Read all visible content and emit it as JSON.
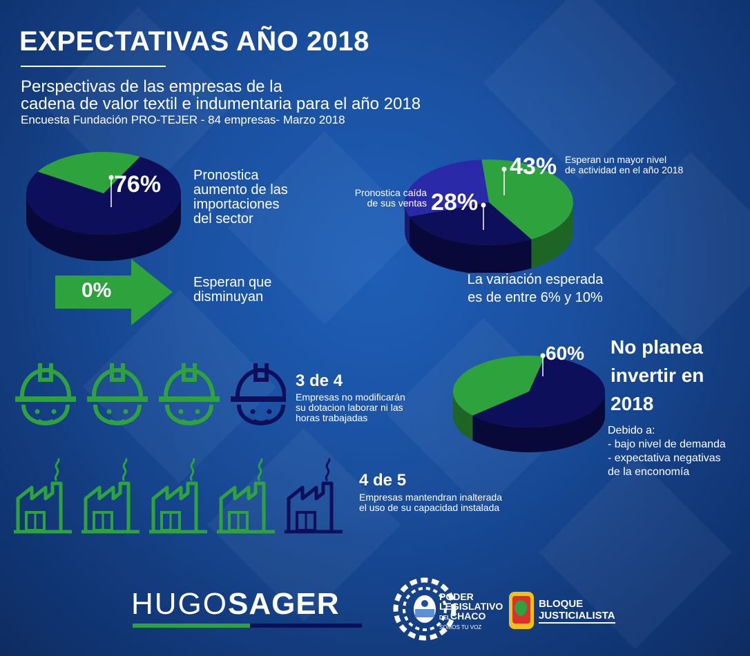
{
  "header": {
    "title": "EXPECTATIVAS AÑO 2018",
    "subtitle_line1": "Perspectivas de las empresas de la",
    "subtitle_line2": "cadena de valor textil e indumentaria para el año 2018",
    "source": "Encuesta Fundación PRO-TEJER - 84 empresas- Marzo 2018"
  },
  "colors": {
    "green": "#2ea23c",
    "navy": "#0d0f5a",
    "purple": "#2a2aa8",
    "white": "#ffffff"
  },
  "chart_data": [
    {
      "type": "pie",
      "name": "importaciones",
      "values": [
        76,
        24
      ],
      "labels": [
        "76%",
        ""
      ],
      "annotation": "Pronostica aumento de las importaciones del sector"
    },
    {
      "type": "pie",
      "name": "actividad",
      "values": [
        43,
        28,
        29
      ],
      "labels": [
        "43%",
        "28%",
        ""
      ],
      "annotations": [
        "Esperan un mayor nivel de actividad en el año 2018",
        "Pronostica caída de sus ventas"
      ],
      "note": "La variación esperada es de entre 6% y 10%"
    },
    {
      "type": "pie",
      "name": "inversion",
      "values": [
        60,
        40
      ],
      "labels": [
        "60%",
        ""
      ],
      "annotation": "No planea invertir en 2018"
    }
  ],
  "pie1": {
    "pct": "76%",
    "desc": [
      "Pronostica",
      "aumento de las",
      "importaciones",
      "del sector"
    ]
  },
  "arrow": {
    "pct": "0%",
    "desc": [
      "Esperan que",
      "disminuyan"
    ]
  },
  "pie2": {
    "pct_up": "43%",
    "desc_up": [
      "Esperan un mayor nivel",
      "de actividad en el año 2018"
    ],
    "pct_down": "28%",
    "desc_down": [
      "Pronostica caída",
      "de sus ventas"
    ],
    "variation": [
      "La variación esperada",
      "es de entre 6% y 10%"
    ]
  },
  "pie3": {
    "pct": "60%",
    "headline": [
      "No planea",
      "invertir en",
      "2018"
    ],
    "reasons": [
      "Debido a:",
      "- bajo nivel de demanda",
      "- expectativa negativas",
      "de la enconomía"
    ]
  },
  "workers": {
    "filled": 3,
    "total": 4,
    "ratio": "3 de 4",
    "desc": [
      "Empresas no modificarán",
      "su dotacion laborar ni las",
      "horas trabajadas"
    ]
  },
  "factories": {
    "filled": 4,
    "total": 5,
    "ratio": "4 de 5",
    "desc": [
      "Empresas mantendran inalterada",
      "el uso de su capacidad instalada"
    ]
  },
  "footer": {
    "hugo_thin": "HUGO",
    "hugo_bold": "SAGER",
    "poder": [
      "PODER",
      "LEGISLATIVO",
      "DEL",
      "CHACO",
      "SOMOS TU VOZ"
    ],
    "bloque": [
      "BLOQUE",
      "JUSTICIALISTA"
    ]
  }
}
